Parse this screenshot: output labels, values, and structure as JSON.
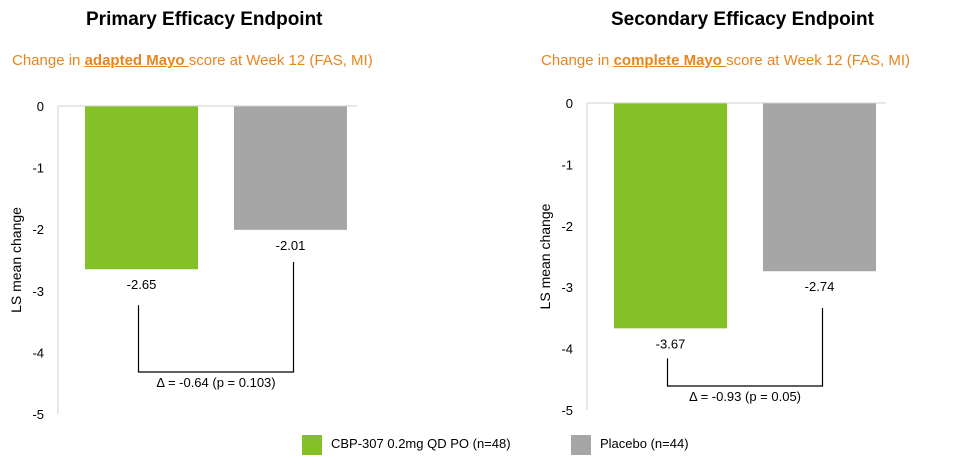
{
  "colors": {
    "cbp": "#84c126",
    "placebo": "#a6a6a6",
    "accent": "#e8851c"
  },
  "legend": {
    "series": [
      {
        "name": "CBP-307 0.2mg QD PO (n=48)",
        "color": "#84c126"
      },
      {
        "name": "Placebo (n=44)",
        "color": "#a6a6a6"
      }
    ]
  },
  "chart_data": [
    {
      "type": "bar",
      "title": "Primary Efficacy Endpoint",
      "subtitle": {
        "pre": "Change in ",
        "highlight": "adapted Mayo ",
        "post": "score at Week 12 (FAS, MI)"
      },
      "ylabel": "LS mean change",
      "ylim": [
        -5,
        0
      ],
      "yticks": [
        "0",
        "-1",
        "-2",
        "-3",
        "-4",
        "-5"
      ],
      "series": [
        {
          "name": "CBP-307 0.2mg QD PO (n=48)",
          "values": [
            -2.65
          ]
        },
        {
          "name": "Placebo (n=44)",
          "values": [
            -2.01
          ]
        }
      ],
      "data_labels": [
        "-2.65",
        "-2.01"
      ],
      "annotation": "Δ = -0.64 (p = 0.103)",
      "delta": -0.64,
      "p_value": 0.103,
      "grid": false
    },
    {
      "type": "bar",
      "title": "Secondary Efficacy Endpoint",
      "subtitle": {
        "pre": "Change in ",
        "highlight": "complete Mayo ",
        "post": "score at Week 12 (FAS, MI)"
      },
      "ylabel": "LS mean change",
      "ylim": [
        -5,
        0
      ],
      "yticks": [
        "0",
        "-1",
        "-2",
        "-3",
        "-4",
        "-5"
      ],
      "series": [
        {
          "name": "CBP-307 0.2mg QD PO (n=48)",
          "values": [
            -3.67
          ]
        },
        {
          "name": "Placebo (n=44)",
          "values": [
            -2.74
          ]
        }
      ],
      "data_labels": [
        "-3.67",
        "-2.74"
      ],
      "annotation": "Δ = -0.93 (p = 0.05)",
      "delta": -0.93,
      "p_value": 0.05,
      "grid": false
    }
  ]
}
